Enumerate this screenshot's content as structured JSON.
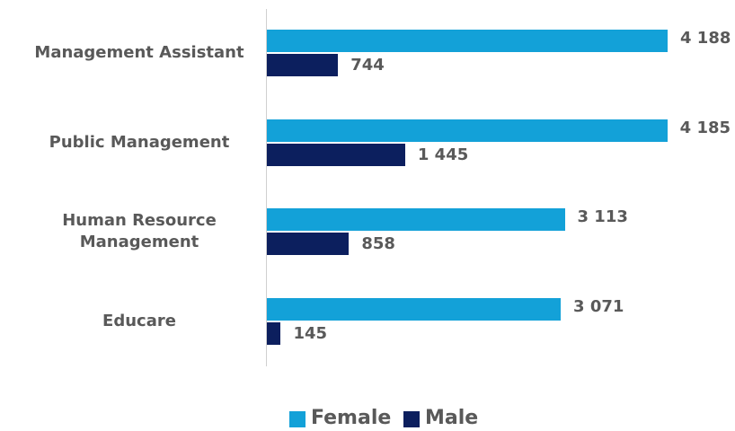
{
  "chart_data": {
    "type": "bar",
    "orientation": "horizontal",
    "categories": [
      "Management Assistant",
      "Public Management",
      "Human Resource Management",
      "Educare"
    ],
    "series": [
      {
        "name": "Female",
        "color": "#13a1d8",
        "values": [
          4188,
          4185,
          3113,
          3071
        ],
        "value_labels": [
          "4 188",
          "4 185",
          "3 113",
          "3 071"
        ]
      },
      {
        "name": "Male",
        "color": "#0c1f5e",
        "values": [
          744,
          1445,
          858,
          145
        ],
        "value_labels": [
          "744",
          "1 445",
          "858",
          "145"
        ]
      }
    ],
    "legend": "bottom"
  }
}
